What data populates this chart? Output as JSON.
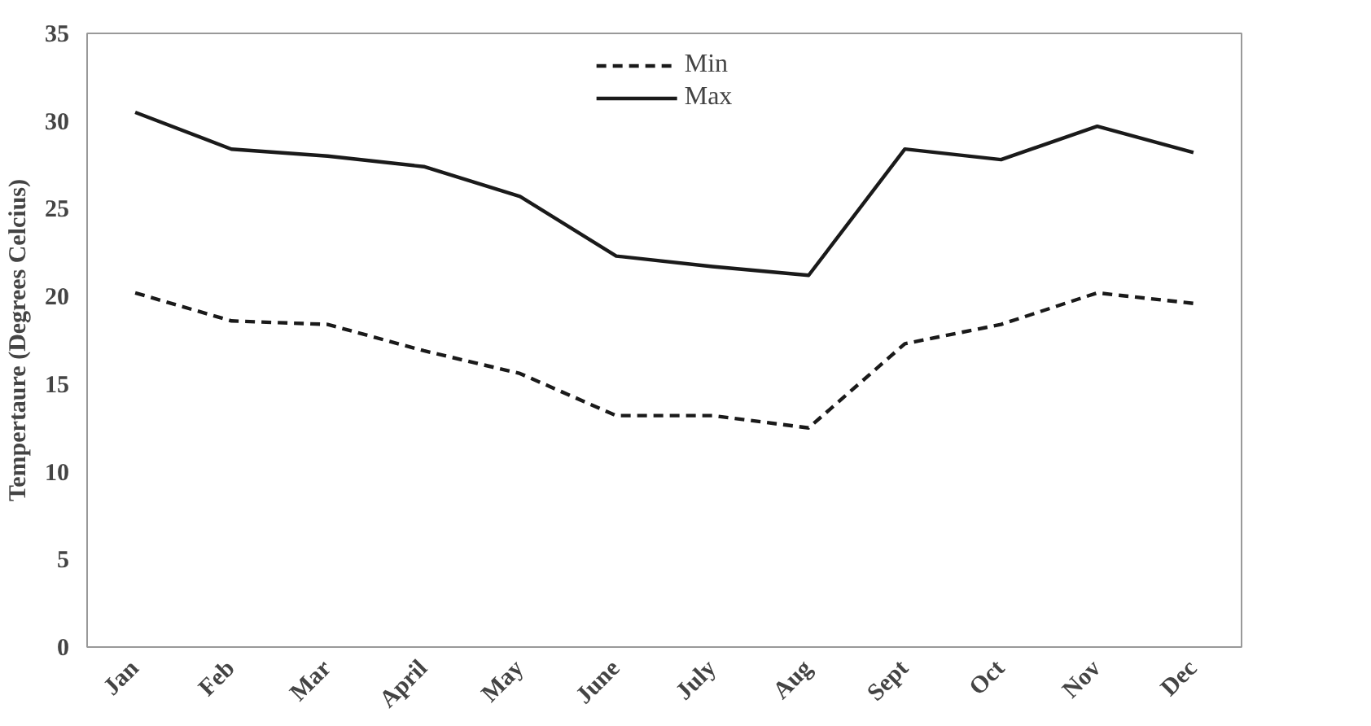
{
  "chart_data": {
    "type": "line",
    "ylabel": "Tempertaure (Degrees Celcius)",
    "categories": [
      "Jan",
      "Feb",
      "Mar",
      "April",
      "May",
      "June",
      "July",
      "Aug",
      "Sept",
      "Oct",
      "Nov",
      "Dec"
    ],
    "series": [
      {
        "name": "Min",
        "color": "#1a1a1a",
        "line_style": "dashed",
        "values": [
          20.2,
          18.6,
          18.4,
          16.9,
          15.6,
          13.2,
          13.2,
          12.5,
          17.3,
          18.4,
          20.2,
          19.6
        ]
      },
      {
        "name": "Max",
        "color": "#1a1a1a",
        "line_style": "solid",
        "values": [
          30.5,
          28.4,
          28.0,
          27.4,
          25.7,
          22.3,
          21.7,
          21.2,
          28.4,
          27.8,
          29.7,
          28.2
        ]
      }
    ],
    "ylim": [
      0,
      35
    ],
    "yticks": [
      0,
      5,
      10,
      15,
      20,
      25,
      30,
      35
    ],
    "grid": false,
    "legend": "top",
    "marker": "none"
  }
}
